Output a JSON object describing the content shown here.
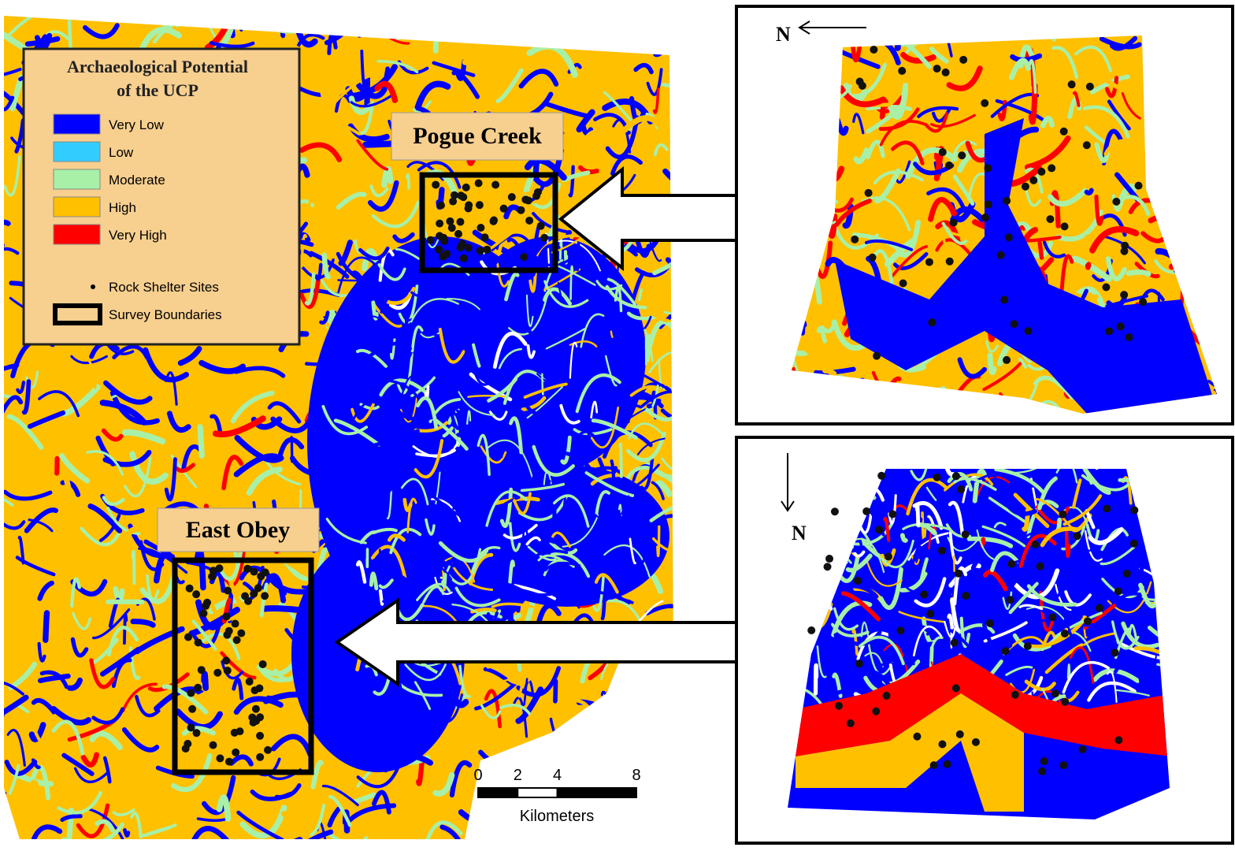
{
  "legend": {
    "title_line1": "Archaeological Potential",
    "title_line2": "of the UCP",
    "classes": [
      {
        "label": "Very Low",
        "color": "#0000ff"
      },
      {
        "label": "Low",
        "color": "#33ccff"
      },
      {
        "label": "Moderate",
        "color": "#a8f0a8"
      },
      {
        "label": "High",
        "color": "#ffc000"
      },
      {
        "label": "Very High",
        "color": "#ff0000"
      }
    ],
    "sites": "Rock Shelter Sites",
    "boundaries": "Survey Boundaries"
  },
  "labels": {
    "pogue_creek": "Pogue Creek",
    "east_obey": "East Obey"
  },
  "scale_bar": {
    "ticks": [
      0,
      2,
      4,
      8
    ],
    "unit": "Kilometers"
  },
  "insets": {
    "top_north": "N",
    "bottom_north": "N"
  }
}
